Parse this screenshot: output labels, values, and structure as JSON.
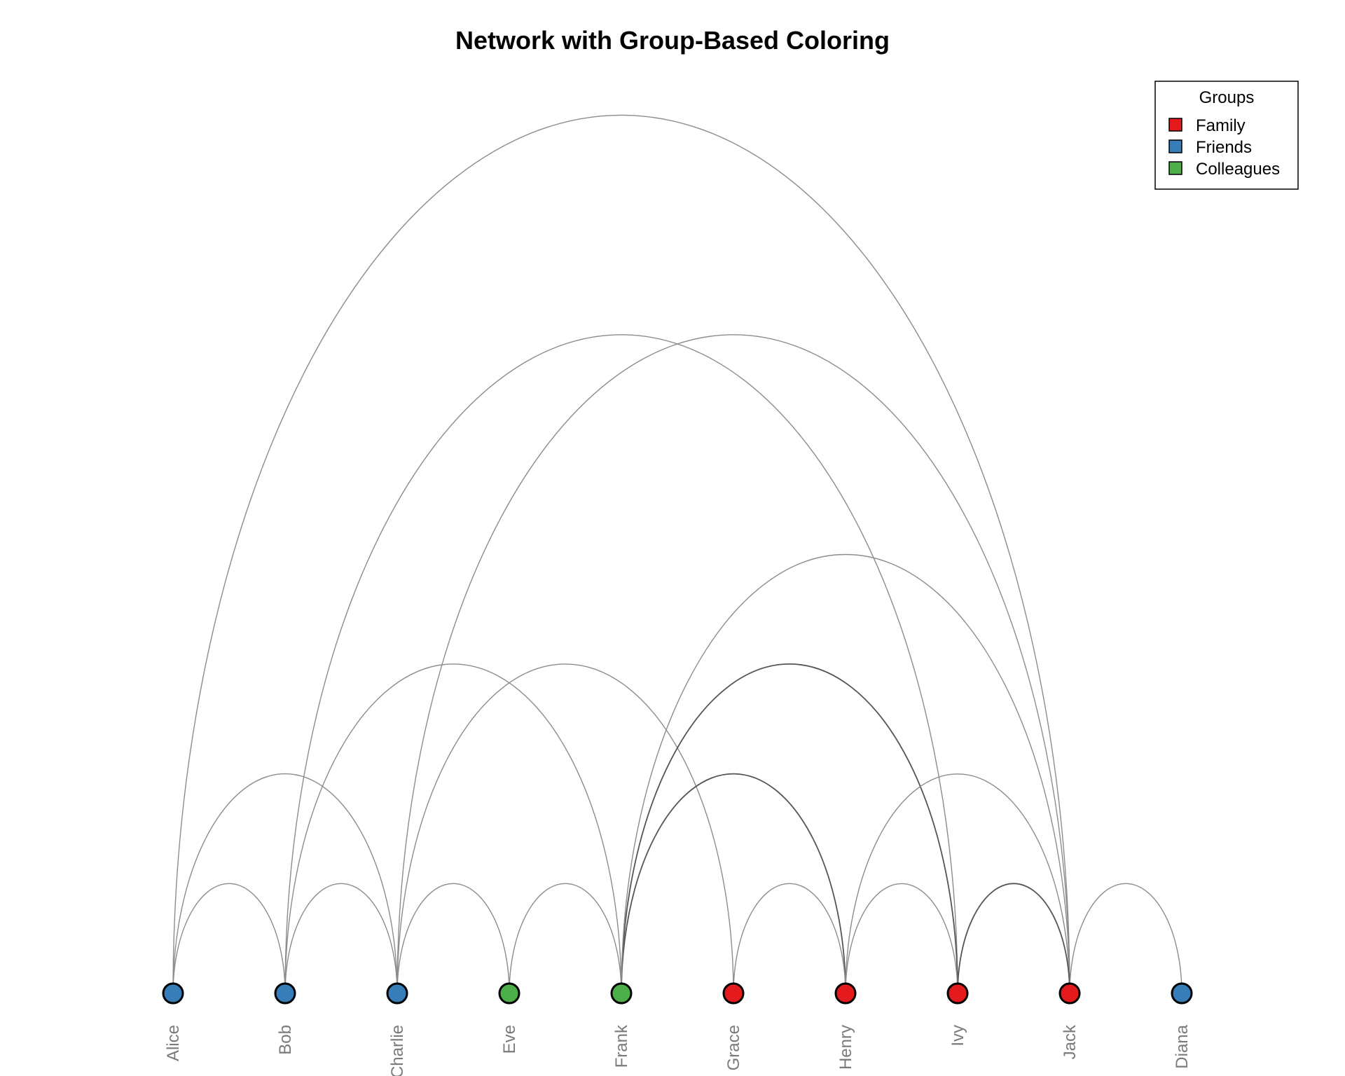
{
  "title": "Network with Group-Based Coloring",
  "legend": {
    "title": "Groups",
    "entries": [
      {
        "group": "Family",
        "label": "Family",
        "color": "#E41A1C"
      },
      {
        "group": "Friends",
        "label": "Friends",
        "color": "#377EB8"
      },
      {
        "group": "Colleagues",
        "label": "Colleagues",
        "color": "#4DAF4A"
      }
    ]
  },
  "chart_data": {
    "type": "arc-diagram",
    "title": "Network with Group-Based Coloring",
    "nodes": [
      {
        "name": "Alice",
        "group": "Friends"
      },
      {
        "name": "Bob",
        "group": "Friends"
      },
      {
        "name": "Charlie",
        "group": "Friends"
      },
      {
        "name": "Eve",
        "group": "Colleagues"
      },
      {
        "name": "Frank",
        "group": "Colleagues"
      },
      {
        "name": "Grace",
        "group": "Family"
      },
      {
        "name": "Henry",
        "group": "Family"
      },
      {
        "name": "Ivy",
        "group": "Family"
      },
      {
        "name": "Jack",
        "group": "Family"
      },
      {
        "name": "Diana",
        "group": "Friends"
      }
    ],
    "edges": [
      {
        "source": "Alice",
        "target": "Bob",
        "weight": 1
      },
      {
        "source": "Alice",
        "target": "Charlie",
        "weight": 1
      },
      {
        "source": "Alice",
        "target": "Jack",
        "weight": 1
      },
      {
        "source": "Bob",
        "target": "Charlie",
        "weight": 1
      },
      {
        "source": "Bob",
        "target": "Frank",
        "weight": 1
      },
      {
        "source": "Bob",
        "target": "Ivy",
        "weight": 1
      },
      {
        "source": "Charlie",
        "target": "Eve",
        "weight": 1
      },
      {
        "source": "Charlie",
        "target": "Grace",
        "weight": 1
      },
      {
        "source": "Charlie",
        "target": "Jack",
        "weight": 1
      },
      {
        "source": "Eve",
        "target": "Frank",
        "weight": 1
      },
      {
        "source": "Frank",
        "target": "Henry",
        "weight": 2
      },
      {
        "source": "Frank",
        "target": "Ivy",
        "weight": 2
      },
      {
        "source": "Frank",
        "target": "Jack",
        "weight": 1
      },
      {
        "source": "Grace",
        "target": "Henry",
        "weight": 1
      },
      {
        "source": "Henry",
        "target": "Ivy",
        "weight": 1
      },
      {
        "source": "Henry",
        "target": "Jack",
        "weight": 1
      },
      {
        "source": "Ivy",
        "target": "Jack",
        "weight": 2
      },
      {
        "source": "Jack",
        "target": "Diana",
        "weight": 1
      }
    ],
    "legend_position": "top-right"
  }
}
